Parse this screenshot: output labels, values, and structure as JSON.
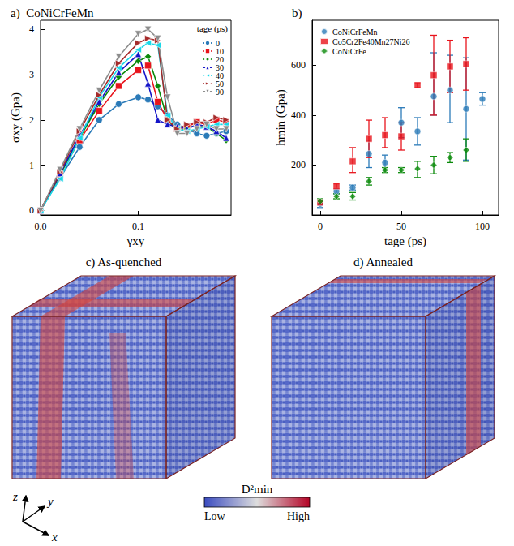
{
  "chart_data": [
    {
      "type": "line",
      "label": "a)",
      "title": "CoNiCrFeMn",
      "x_label": "γxy",
      "y_label": "σxy (Gpa)",
      "legend_title": "tage (ps)",
      "legend": "upper right",
      "grid": false,
      "x": [
        0,
        0.02,
        0.04,
        0.06,
        0.08,
        0.1,
        0.11,
        0.12,
        0.13,
        0.14,
        0.15,
        0.16,
        0.17,
        0.18,
        0.19
      ],
      "xlim": [
        0,
        0.195
      ],
      "xticks": [
        {
          "value": 0,
          "label": "0.0"
        },
        {
          "value": 0.1,
          "label": "0.1"
        }
      ],
      "ylim": [
        -0.1,
        4.2
      ],
      "yticks": [
        0,
        1,
        2,
        3,
        4
      ],
      "series": [
        {
          "name": "0",
          "color": "#2a7ab8",
          "marker": "circle",
          "values": [
            0,
            0.72,
            1.4,
            2.0,
            2.35,
            2.5,
            2.45,
            2.3,
            2.1,
            1.9,
            1.8,
            1.7,
            1.65,
            1.7,
            1.75
          ]
        },
        {
          "name": "10",
          "color": "#e8141c",
          "marker": "square",
          "values": [
            0,
            0.8,
            1.55,
            2.2,
            2.75,
            3.1,
            3.2,
            2.4,
            2.0,
            1.8,
            1.85,
            1.95,
            1.9,
            2.0,
            1.95
          ]
        },
        {
          "name": "20",
          "color": "#0a8a0a",
          "marker": "diamond",
          "values": [
            0,
            0.8,
            1.6,
            2.35,
            2.95,
            3.3,
            3.4,
            2.75,
            2.0,
            1.75,
            1.8,
            1.9,
            1.85,
            1.7,
            1.55
          ]
        },
        {
          "name": "30",
          "color": "#1414c8",
          "marker": "triangle",
          "values": [
            0,
            0.82,
            1.65,
            2.4,
            3.05,
            3.45,
            2.8,
            2.0,
            1.9,
            1.85,
            1.8,
            1.9,
            1.85,
            1.75,
            1.6
          ]
        },
        {
          "name": "40",
          "color": "#19d8e8",
          "marker": "triangle-left",
          "values": [
            0,
            0.7,
            1.6,
            2.5,
            3.15,
            3.55,
            3.7,
            3.65,
            2.1,
            1.8,
            1.75,
            1.8,
            1.85,
            1.9,
            1.9
          ]
        },
        {
          "name": "50",
          "color": "#a52a2a",
          "marker": "triangle-right",
          "values": [
            0,
            0.85,
            1.75,
            2.55,
            3.25,
            3.7,
            3.8,
            3.75,
            2.0,
            1.8,
            1.9,
            1.95,
            1.95,
            2.05,
            2.0
          ]
        },
        {
          "name": "90",
          "color": "#8c8c8c",
          "marker": "triangle-down",
          "values": [
            0,
            0.9,
            1.8,
            2.65,
            3.4,
            3.9,
            4.0,
            3.8,
            2.5,
            1.7,
            1.7,
            1.8,
            1.9,
            1.8,
            1.8
          ]
        }
      ]
    },
    {
      "type": "scatter",
      "label": "b)",
      "x_label": "tage (ps)",
      "y_label": "hmin (Gpa)",
      "legend": "upper left",
      "grid": false,
      "x": [
        0,
        10,
        20,
        30,
        40,
        50,
        60,
        70,
        80,
        90,
        100
      ],
      "xlim": [
        -5,
        110
      ],
      "xticks": [
        0,
        50,
        100
      ],
      "ylim": [
        0,
        780
      ],
      "yticks": [
        200,
        400,
        600
      ],
      "series": [
        {
          "name": "CoNiCrFeMn",
          "color": "#2a7ab8",
          "marker": "circle",
          "values": [
            45,
            95,
            110,
            245,
            210,
            370,
            335,
            475,
            500,
            425,
            465
          ],
          "lower": [
            30,
            85,
            100,
            190,
            180,
            310,
            280,
            400,
            370,
            220,
            440
          ],
          "upper": [
            60,
            105,
            120,
            300,
            240,
            430,
            390,
            650,
            640,
            630,
            490
          ]
        },
        {
          "name": "Co5Cr2Fe40Mn27Ni26",
          "color": "#e8141c",
          "marker": "square",
          "values": [
            50,
            115,
            215,
            305,
            320,
            315,
            520,
            560,
            595,
            605,
            null
          ],
          "lower": [
            40,
            105,
            170,
            230,
            270,
            260,
            510,
            400,
            490,
            500,
            null
          ],
          "upper": [
            60,
            125,
            270,
            380,
            390,
            370,
            530,
            720,
            700,
            710,
            null
          ]
        },
        {
          "name": "CoNiCrFe",
          "color": "#0a8a0a",
          "marker": "diamond",
          "values": [
            55,
            75,
            75,
            135,
            180,
            180,
            185,
            200,
            230,
            260,
            null
          ],
          "lower": [
            45,
            65,
            60,
            120,
            170,
            170,
            150,
            165,
            210,
            215,
            null
          ],
          "upper": [
            65,
            85,
            90,
            150,
            190,
            190,
            215,
            235,
            250,
            305,
            null
          ]
        }
      ]
    }
  ],
  "panels": [
    {
      "label": "c)",
      "title": "As-quenched"
    },
    {
      "label": "d)",
      "title": "Annealed"
    }
  ],
  "colorbar": {
    "title": "D²min",
    "low": "Low",
    "high": "High"
  },
  "axes": [
    "x",
    "y",
    "z"
  ]
}
